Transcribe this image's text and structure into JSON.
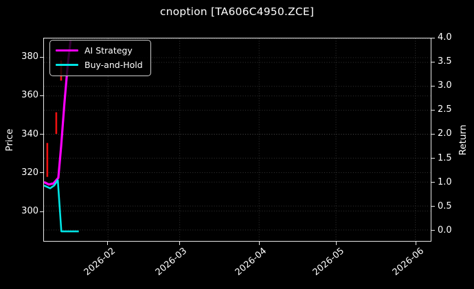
{
  "title": "cnoption [TA606C4950.ZCE]",
  "chart_data": {
    "type": "line+candlestick",
    "title": "cnoption [TA606C4950.ZCE]",
    "background": "#000000",
    "grid": {
      "on": true,
      "color": "#555555",
      "style": "dotted"
    },
    "x_axis": {
      "unit": "days since 2026-01-01",
      "min": 6,
      "max": 157,
      "ticks": [
        {
          "day": 31,
          "label": "2026-02"
        },
        {
          "day": 59,
          "label": "2026-03"
        },
        {
          "day": 90,
          "label": "2026-04"
        },
        {
          "day": 120,
          "label": "2026-05"
        },
        {
          "day": 151,
          "label": "2026-06"
        }
      ]
    },
    "price_axis": {
      "label": "Price",
      "side": "left",
      "min": 284.4,
      "max": 390,
      "ticks": [
        {
          "value": 300,
          "label": "300"
        },
        {
          "value": 320,
          "label": "320"
        },
        {
          "value": 340,
          "label": "340"
        },
        {
          "value": 360,
          "label": "360"
        },
        {
          "value": 380,
          "label": "380"
        }
      ]
    },
    "return_axis": {
      "label": "Return",
      "side": "right",
      "min": -0.23,
      "max": 4.0,
      "ticks": [
        {
          "value": 0.0,
          "label": "0.0"
        },
        {
          "value": 0.5,
          "label": "0.5"
        },
        {
          "value": 1.0,
          "label": "1.0"
        },
        {
          "value": 1.5,
          "label": "1.5"
        },
        {
          "value": 2.0,
          "label": "2.0"
        },
        {
          "value": 2.5,
          "label": "2.5"
        },
        {
          "value": 3.0,
          "label": "3.0"
        },
        {
          "value": 3.5,
          "label": "3.5"
        },
        {
          "value": 4.0,
          "label": "4.0"
        }
      ]
    },
    "price_candles": {
      "color": "#ee1111",
      "bar_width": 2.6,
      "bars": [
        {
          "day": 7.3,
          "high": 335.5,
          "low": 317.8
        },
        {
          "day": 10.8,
          "high": 351.5,
          "low": 340.2
        },
        {
          "day": 12.7,
          "high": 378.5,
          "low": 368.0
        }
      ]
    },
    "series": [
      {
        "name": "AI Strategy",
        "axis": "return",
        "color": "#ff00ff",
        "width": 3.2,
        "points": [
          [
            6.0,
            1.0
          ],
          [
            7.9,
            0.95
          ],
          [
            9.7,
            0.97
          ],
          [
            11.6,
            1.09
          ],
          [
            12.7,
            1.75
          ],
          [
            14.0,
            2.65
          ],
          [
            15.3,
            3.46
          ],
          [
            16.4,
            3.96
          ]
        ]
      },
      {
        "name": "Buy-and-Hold",
        "axis": "return",
        "color": "#00e5e5",
        "width": 2.6,
        "points": [
          [
            6.0,
            0.93
          ],
          [
            8.4,
            0.87
          ],
          [
            10.0,
            0.93
          ],
          [
            11.4,
            1.04
          ],
          [
            12.8,
            -0.03
          ],
          [
            19.6,
            -0.03
          ]
        ]
      }
    ],
    "legend": {
      "position": "upper-left"
    }
  }
}
